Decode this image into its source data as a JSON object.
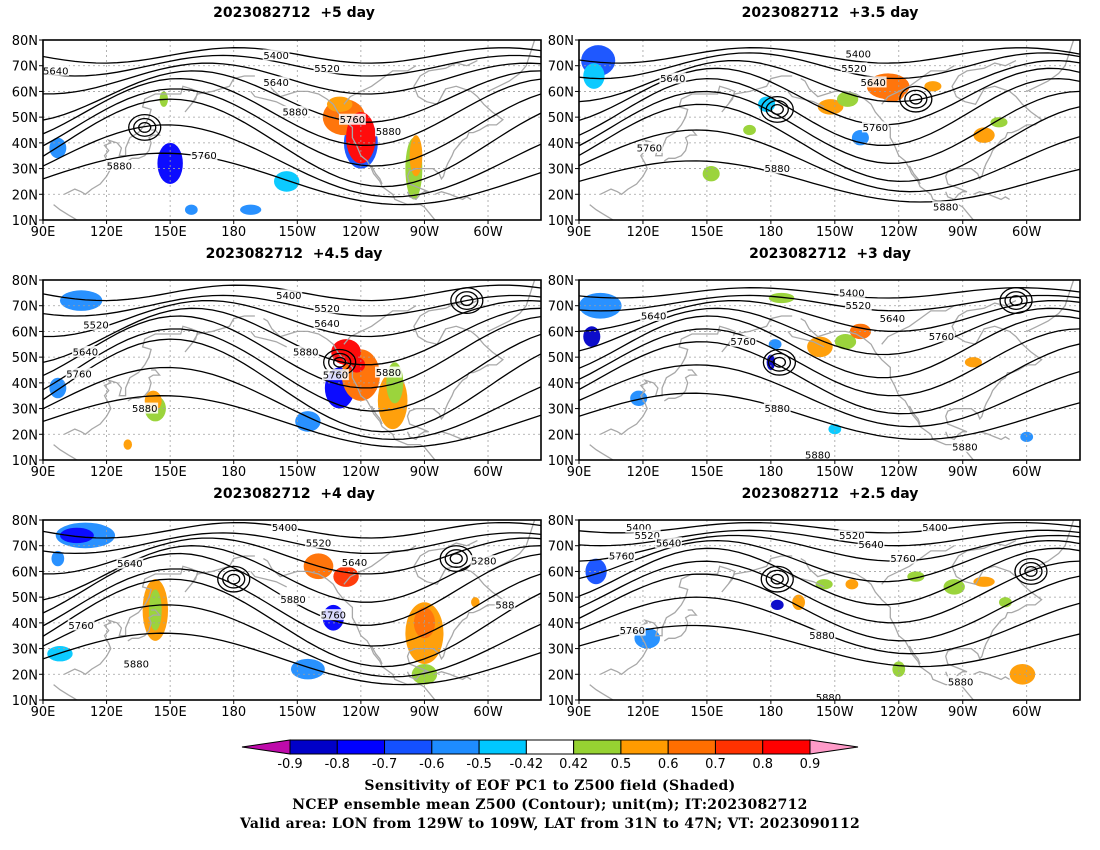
{
  "panels": [
    {
      "title": "2023082712  +5 day",
      "c": [
        {
          "t": "5400",
          "x": "-160",
          "y": "74"
        },
        {
          "t": "5520",
          "x": "-136",
          "y": "69"
        },
        {
          "t": "5640",
          "x": "-160",
          "y": "63.5"
        },
        {
          "t": "5640",
          "x": "96",
          "y": "68"
        },
        {
          "t": "5880",
          "x": "-151",
          "y": "52"
        },
        {
          "t": "5760",
          "x": "-124",
          "y": "49"
        },
        {
          "t": "5880",
          "x": "-107",
          "y": "44.5"
        },
        {
          "t": "5760",
          "x": "166",
          "y": "35"
        },
        {
          "t": "5880",
          "x": "126",
          "y": "31"
        }
      ],
      "lows": [
        [
          138,
          46
        ]
      ]
    },
    {
      "title": "2023082712  +3.5 day",
      "c": [
        {
          "t": "5400",
          "x": "-139",
          "y": "74.5"
        },
        {
          "t": "5520",
          "x": "-141",
          "y": "69"
        },
        {
          "t": "5640",
          "x": "-132",
          "y": "63.5"
        },
        {
          "t": "5640",
          "x": "134",
          "y": "65"
        },
        {
          "t": "5760",
          "x": "-131",
          "y": "46"
        },
        {
          "t": "5760",
          "x": "123",
          "y": "38"
        },
        {
          "t": "5880",
          "x": "-177",
          "y": "30"
        },
        {
          "t": "5880",
          "x": "-98",
          "y": "15"
        }
      ],
      "lows": [
        [
          183,
          53
        ],
        [
          -112,
          57
        ]
      ]
    },
    {
      "title": "2023082712  +4.5 day",
      "c": [
        {
          "t": "5400",
          "x": "-154",
          "y": "74"
        },
        {
          "t": "5520",
          "x": "-136",
          "y": "69"
        },
        {
          "t": "5640",
          "x": "-136",
          "y": "63"
        },
        {
          "t": "5520",
          "x": "115",
          "y": "62.5"
        },
        {
          "t": "5640",
          "x": "110",
          "y": "52"
        },
        {
          "t": "5880",
          "x": "-146",
          "y": "52"
        },
        {
          "t": "5760",
          "x": "107",
          "y": "43.5"
        },
        {
          "t": "5760",
          "x": "-132",
          "y": "43"
        },
        {
          "t": "5880",
          "x": "-107",
          "y": "44"
        },
        {
          "t": "5880",
          "x": "138",
          "y": "30"
        }
      ],
      "lows": [
        [
          -130,
          48
        ],
        [
          -70,
          72
        ]
      ]
    },
    {
      "title": "2023082712  +3 day",
      "c": [
        {
          "t": "5400",
          "x": "-142",
          "y": "75"
        },
        {
          "t": "5520",
          "x": "-139",
          "y": "70"
        },
        {
          "t": "5640",
          "x": "-123",
          "y": "65"
        },
        {
          "t": "5640",
          "x": "125",
          "y": "66"
        },
        {
          "t": "5760",
          "x": "167",
          "y": "56"
        },
        {
          "t": "5760",
          "x": "-100",
          "y": "58"
        },
        {
          "t": "5880",
          "x": "-177",
          "y": "30"
        },
        {
          "t": "5880",
          "x": "-158",
          "y": "12"
        },
        {
          "t": "5880",
          "x": "-89",
          "y": "15"
        }
      ],
      "lows": [
        [
          -176,
          48
        ],
        [
          -65,
          72
        ]
      ]
    },
    {
      "title": "2023082712  +4 day",
      "c": [
        {
          "t": "5400",
          "x": "-156",
          "y": "77"
        },
        {
          "t": "5520",
          "x": "-140",
          "y": "71"
        },
        {
          "t": "5640",
          "x": "-123",
          "y": "63.5"
        },
        {
          "t": "5640",
          "x": "131",
          "y": "63"
        },
        {
          "t": "5280",
          "x": "-62",
          "y": "64"
        },
        {
          "t": "5880",
          "x": "-152",
          "y": "49"
        },
        {
          "t": "5760",
          "x": "-133",
          "y": "43"
        },
        {
          "t": "5760",
          "x": "108",
          "y": "39"
        },
        {
          "t": "5880",
          "x": "134",
          "y": "24"
        },
        {
          "t": "588",
          "x": "-52",
          "y": "47"
        }
      ],
      "lows": [
        [
          -180,
          57
        ],
        [
          -75,
          65
        ]
      ]
    },
    {
      "title": "2023082712  +2.5 day",
      "c": [
        {
          "t": "5400",
          "x": "118",
          "y": "77"
        },
        {
          "t": "5520",
          "x": "122",
          "y": "74"
        },
        {
          "t": "5640",
          "x": "132",
          "y": "71"
        },
        {
          "t": "5760",
          "x": "110",
          "y": "66"
        },
        {
          "t": "5520",
          "x": "-142",
          "y": "74"
        },
        {
          "t": "5640",
          "x": "-133",
          "y": "70.5"
        },
        {
          "t": "5400",
          "x": "-103",
          "y": "77"
        },
        {
          "t": "5760",
          "x": "-118",
          "y": "65"
        },
        {
          "t": "5760",
          "x": "115",
          "y": "37"
        },
        {
          "t": "5880",
          "x": "-156",
          "y": "35"
        },
        {
          "t": "5880",
          "x": "-153",
          "y": "11"
        },
        {
          "t": "5880",
          "x": "-91",
          "y": "17"
        }
      ],
      "lows": [
        [
          183,
          57
        ],
        [
          -58,
          60
        ]
      ]
    }
  ],
  "axes": {
    "lat_labels": [
      "80N",
      "70N",
      "60N",
      "50N",
      "40N",
      "30N",
      "20N",
      "10N"
    ],
    "lon_labels": [
      "90E",
      "120E",
      "150E",
      "180",
      "150W",
      "120W",
      "90W",
      "60W"
    ],
    "lon_range": [
      90,
      325
    ],
    "lat_range": [
      10,
      80
    ]
  },
  "colorbar": {
    "ticks": [
      "-0.9",
      "-0.8",
      "-0.7",
      "-0.6",
      "-0.5",
      "-0.42",
      "0.42",
      "0.5",
      "0.6",
      "0.7",
      "0.8",
      "0.9"
    ],
    "colors": [
      "#be0aaa",
      "#0000c8",
      "#0000ff",
      "#1450ff",
      "#1e8cff",
      "#00c8ff",
      "#ffffff",
      "#96d232",
      "#ff9b00",
      "#ff6e00",
      "#ff3200",
      "#ff0000",
      "#ff9bc8"
    ]
  },
  "caption": {
    "line1": "Sensitivity of EOF PC1 to Z500 field (Shaded)",
    "line2": "NCEP ensemble mean Z500 (Contour); unit(m); IT:2023082712",
    "line3": "Valid area: LON from 129W to 109W, LAT from 31N to 47N; VT: 2023090112"
  },
  "colors": {
    "contour": "#000000",
    "coast": "#a8a8a8",
    "grid": "#a0a0a0"
  }
}
